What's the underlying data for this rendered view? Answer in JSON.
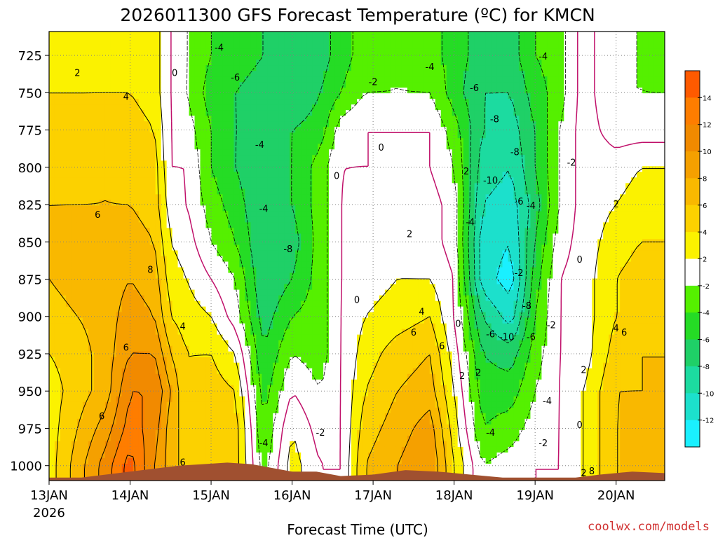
{
  "chart_data": {
    "type": "heatmap",
    "title": "2026011300 GFS Forecast Temperature (ºC) for KMCN",
    "xlabel": "Forecast Time (UTC)",
    "credit": "coolwx.com/models",
    "x_ticks": [
      "13JAN",
      "14JAN",
      "15JAN",
      "16JAN",
      "17JAN",
      "18JAN",
      "19JAN",
      "20JAN"
    ],
    "x_year_label": "2026",
    "x_range": [
      0,
      7.6
    ],
    "y_ticks": [
      725,
      750,
      775,
      800,
      825,
      850,
      875,
      900,
      925,
      950,
      975,
      1000
    ],
    "y_range_hPa": [
      709,
      1010
    ],
    "y_axis": "pressure (hPa), increasing downward",
    "colorbar": {
      "ticks": [
        14,
        12,
        10,
        8,
        6,
        4,
        2,
        -2,
        -4,
        -6,
        -8,
        -10,
        -12
      ],
      "bins": [
        {
          "range": [
            14,
            16
          ],
          "color": "#fe5a00"
        },
        {
          "range": [
            12,
            14
          ],
          "color": "#fe7d00"
        },
        {
          "range": [
            10,
            12
          ],
          "color": "#f18a00"
        },
        {
          "range": [
            8,
            10
          ],
          "color": "#f5a000"
        },
        {
          "range": [
            6,
            8
          ],
          "color": "#f9b800"
        },
        {
          "range": [
            4,
            6
          ],
          "color": "#fcd100"
        },
        {
          "range": [
            2,
            4
          ],
          "color": "#fbf200"
        },
        {
          "range": [
            -2,
            2
          ],
          "color": "#ffffff"
        },
        {
          "range": [
            -4,
            -2
          ],
          "color": "#55f000"
        },
        {
          "range": [
            -6,
            -4
          ],
          "color": "#25dc25"
        },
        {
          "range": [
            -8,
            -6
          ],
          "color": "#1fd067"
        },
        {
          "range": [
            -10,
            -8
          ],
          "color": "#1cdba0"
        },
        {
          "range": [
            -12,
            -10
          ],
          "color": "#1ce0cc"
        },
        {
          "range": [
            -14,
            -12
          ],
          "color": "#1af0ff"
        }
      ]
    },
    "columns": [
      {
        "t": 0.0,
        "s": [
          2,
          4,
          5,
          5,
          6,
          6,
          6,
          5,
          4,
          3,
          3,
          3
        ]
      },
      {
        "t": 0.35,
        "s": [
          2,
          4,
          5,
          5,
          6,
          7,
          7,
          6,
          5,
          5,
          6,
          7
        ]
      },
      {
        "t": 0.7,
        "s": [
          3,
          4,
          5,
          6,
          6,
          7,
          7,
          7,
          7,
          7,
          9,
          11
        ]
      },
      {
        "t": 1.0,
        "s": [
          3,
          4,
          5,
          5,
          6,
          7,
          8,
          9,
          10,
          12,
          13,
          15
        ]
      },
      {
        "t": 1.3,
        "s": [
          3,
          3,
          4,
          5,
          5,
          6,
          7,
          8,
          10,
          12,
          11,
          10
        ]
      },
      {
        "t": 1.5,
        "s": [
          0,
          0,
          0,
          0,
          1,
          2,
          3,
          4,
          6,
          8,
          7,
          7
        ]
      },
      {
        "t": 1.7,
        "s": [
          -2,
          -2,
          -1,
          0,
          0,
          1,
          2,
          3,
          4,
          4,
          5,
          5
        ]
      },
      {
        "t": 2.0,
        "s": [
          -4,
          -5,
          -4,
          -4,
          -3,
          -2,
          0,
          2,
          4,
          5,
          6,
          6
        ]
      },
      {
        "t": 2.3,
        "s": [
          -5,
          -6,
          -6,
          -6,
          -5,
          -4,
          -2,
          -1,
          2,
          4,
          5,
          5
        ]
      },
      {
        "t": 2.65,
        "s": [
          -6,
          -7,
          -7,
          -8,
          -8,
          -8,
          -8,
          -7,
          -6,
          -5,
          -4,
          -3
        ]
      },
      {
        "t": 3.0,
        "s": [
          -8,
          -8,
          -6,
          -6,
          -6,
          -7,
          -6,
          -4,
          -2,
          0,
          2,
          3
        ]
      },
      {
        "t": 3.35,
        "s": [
          -7,
          -6,
          -5,
          -3,
          -3,
          -3,
          -3,
          -3,
          -3,
          -2,
          -1,
          0
        ]
      },
      {
        "t": 3.6,
        "s": [
          -5,
          -4,
          -1,
          0,
          0,
          0,
          0,
          0,
          0,
          0,
          0,
          0
        ]
      },
      {
        "t": 3.9,
        "s": [
          -3,
          -2,
          0,
          0,
          1,
          1,
          1,
          2,
          3,
          4,
          5,
          6
        ]
      },
      {
        "t": 4.3,
        "s": [
          -2,
          -2,
          0,
          0,
          1,
          2,
          2,
          3,
          5,
          6,
          7,
          8
        ]
      },
      {
        "t": 4.7,
        "s": [
          -3,
          -2,
          0,
          0,
          1,
          1,
          2,
          4,
          6,
          7,
          9,
          10
        ]
      },
      {
        "t": 5.0,
        "s": [
          -5,
          -5,
          -3,
          -2,
          -1,
          -1,
          0,
          0,
          1,
          2,
          3,
          4
        ]
      },
      {
        "t": 5.35,
        "s": [
          -7,
          -8,
          -8,
          -9,
          -10,
          -11,
          -11,
          -8,
          -6,
          -5,
          -4,
          -2
        ]
      },
      {
        "t": 5.7,
        "s": [
          -7,
          -8,
          -9,
          -10,
          -11,
          -12,
          -13,
          -11,
          -7,
          -5,
          -3,
          -1
        ]
      },
      {
        "t": 6.0,
        "s": [
          -4,
          -5,
          -6,
          -6,
          -7,
          -6,
          -5,
          -4,
          -3,
          -2,
          -1,
          0
        ]
      },
      {
        "t": 6.3,
        "s": [
          -3,
          -3,
          -2,
          -2,
          -2,
          -1,
          0,
          0,
          0,
          0,
          0,
          0
        ]
      },
      {
        "t": 6.6,
        "s": [
          1,
          1,
          1,
          1,
          1,
          1,
          1,
          1,
          1,
          2,
          2,
          2
        ]
      },
      {
        "t": 7.0,
        "s": [
          -2,
          -2,
          -1,
          1,
          2,
          3,
          4,
          4,
          5,
          6,
          6,
          6
        ]
      },
      {
        "t": 7.3,
        "s": [
          -2,
          -2,
          -1,
          2,
          3,
          4,
          5,
          5,
          6,
          6,
          7,
          7
        ]
      },
      {
        "t": 7.6,
        "s": [
          -3,
          -2,
          -1,
          2,
          3,
          4,
          5,
          5,
          6,
          6,
          7,
          7
        ]
      }
    ],
    "contour_labels": [
      {
        "value": "0",
        "t": 1.55,
        "p": 737
      },
      {
        "value": "-4",
        "t": 2.1,
        "p": 720
      },
      {
        "value": "-6",
        "t": 2.3,
        "p": 740
      },
      {
        "value": "-4",
        "t": 2.6,
        "p": 785
      },
      {
        "value": "-4",
        "t": 2.65,
        "p": 828
      },
      {
        "value": "-8",
        "t": 2.95,
        "p": 855
      },
      {
        "value": "-4",
        "t": 2.65,
        "p": 985
      },
      {
        "value": "-2",
        "t": 3.35,
        "p": 978
      },
      {
        "value": "0",
        "t": 3.55,
        "p": 806
      },
      {
        "value": "0",
        "t": 3.8,
        "p": 889
      },
      {
        "value": "-2",
        "t": 4.0,
        "p": 743
      },
      {
        "value": "0",
        "t": 4.1,
        "p": 787
      },
      {
        "value": "-4",
        "t": 4.7,
        "p": 733
      },
      {
        "value": "-6",
        "t": 5.25,
        "p": 747
      },
      {
        "value": "-8",
        "t": 5.5,
        "p": 768
      },
      {
        "value": "-8",
        "t": 5.75,
        "p": 790
      },
      {
        "value": "-10",
        "t": 5.45,
        "p": 809
      },
      {
        "value": "2",
        "t": 5.15,
        "p": 803
      },
      {
        "value": "-4",
        "t": 5.2,
        "p": 837
      },
      {
        "value": "-6",
        "t": 5.8,
        "p": 823
      },
      {
        "value": "-4",
        "t": 5.95,
        "p": 826
      },
      {
        "value": "-2",
        "t": 5.8,
        "p": 871
      },
      {
        "value": "-8",
        "t": 5.9,
        "p": 893
      },
      {
        "value": "-4",
        "t": 6.1,
        "p": 726
      },
      {
        "value": "-2",
        "t": 6.45,
        "p": 797
      },
      {
        "value": "2",
        "t": 7.0,
        "p": 825
      },
      {
        "value": "0",
        "t": 6.55,
        "p": 862
      },
      {
        "value": "2",
        "t": 0.35,
        "p": 737
      },
      {
        "value": "4",
        "t": 0.95,
        "p": 753
      },
      {
        "value": "6",
        "t": 0.6,
        "p": 832
      },
      {
        "value": "8",
        "t": 1.25,
        "p": 869
      },
      {
        "value": "6",
        "t": 0.95,
        "p": 921
      },
      {
        "value": "6",
        "t": 0.65,
        "p": 967
      },
      {
        "value": "4",
        "t": 1.65,
        "p": 907
      },
      {
        "value": "6",
        "t": 1.65,
        "p": 998
      },
      {
        "value": "4",
        "t": 4.6,
        "p": 897
      },
      {
        "value": "6",
        "t": 4.5,
        "p": 911
      },
      {
        "value": "2",
        "t": 4.45,
        "p": 845
      },
      {
        "value": "6",
        "t": 4.85,
        "p": 920
      },
      {
        "value": "0",
        "t": 5.05,
        "p": 905
      },
      {
        "value": "2",
        "t": 5.1,
        "p": 940
      },
      {
        "value": "2",
        "t": 5.3,
        "p": 938
      },
      {
        "value": "-6",
        "t": 5.45,
        "p": 912
      },
      {
        "value": "-10",
        "t": 5.65,
        "p": 914
      },
      {
        "value": "-6",
        "t": 5.95,
        "p": 914
      },
      {
        "value": "-2",
        "t": 6.2,
        "p": 906
      },
      {
        "value": "-4",
        "t": 6.15,
        "p": 957
      },
      {
        "value": "-4",
        "t": 5.45,
        "p": 978
      },
      {
        "value": "-2",
        "t": 6.1,
        "p": 985
      },
      {
        "value": "2",
        "t": 6.6,
        "p": 936
      },
      {
        "value": "0",
        "t": 6.55,
        "p": 973
      },
      {
        "value": "4",
        "t": 7.0,
        "p": 908
      },
      {
        "value": "6",
        "t": 7.1,
        "p": 911
      },
      {
        "value": "2",
        "t": 6.6,
        "p": 1005
      },
      {
        "value": "8",
        "t": 6.7,
        "p": 1004
      }
    ]
  }
}
